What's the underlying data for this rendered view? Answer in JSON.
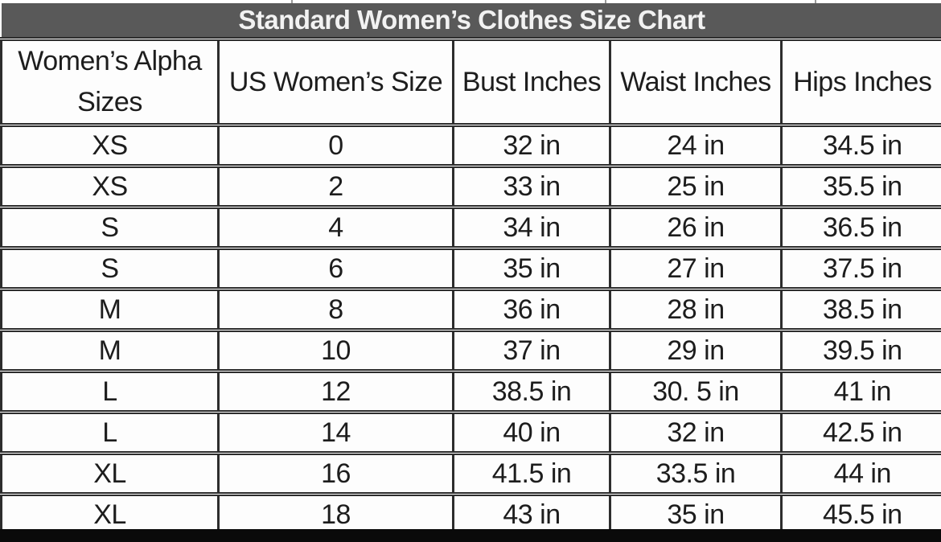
{
  "title": "Standard Women’s Clothes Size Chart",
  "colors": {
    "title_bg": "#595959",
    "title_text": "#f2f2f2",
    "grid_border": "#2d2d2d",
    "cell_text": "#1d1d1d",
    "cell_bg": "#fdfdfd",
    "bottom_bar": "#0a0a0a"
  },
  "chart_data": {
    "type": "table",
    "title": "Standard Women’s Clothes Size Chart",
    "headers": [
      "Women’s Alpha\nSizes",
      "US Women’s Size",
      "Bust Inches",
      "Waist Inches",
      "Hips Inches"
    ],
    "rows": [
      [
        "XS",
        "0",
        "32 in",
        "24 in",
        "34.5 in"
      ],
      [
        "XS",
        "2",
        "33 in",
        "25 in",
        "35.5 in"
      ],
      [
        "S",
        "4",
        "34 in",
        "26 in",
        "36.5 in"
      ],
      [
        "S",
        "6",
        "35 in",
        "27 in",
        "37.5 in"
      ],
      [
        "M",
        "8",
        "36 in",
        "28 in",
        "38.5 in"
      ],
      [
        "M",
        "10",
        "37 in",
        "29 in",
        "39.5 in"
      ],
      [
        "L",
        "12",
        "38.5 in",
        "30. 5 in",
        "41 in"
      ],
      [
        "L",
        "14",
        "40 in",
        "32 in",
        "42.5 in"
      ],
      [
        "XL",
        "16",
        "41.5 in",
        "33.5 in",
        "44 in"
      ],
      [
        "XL",
        "18",
        "43 in",
        "35 in",
        "45.5 in"
      ]
    ]
  }
}
